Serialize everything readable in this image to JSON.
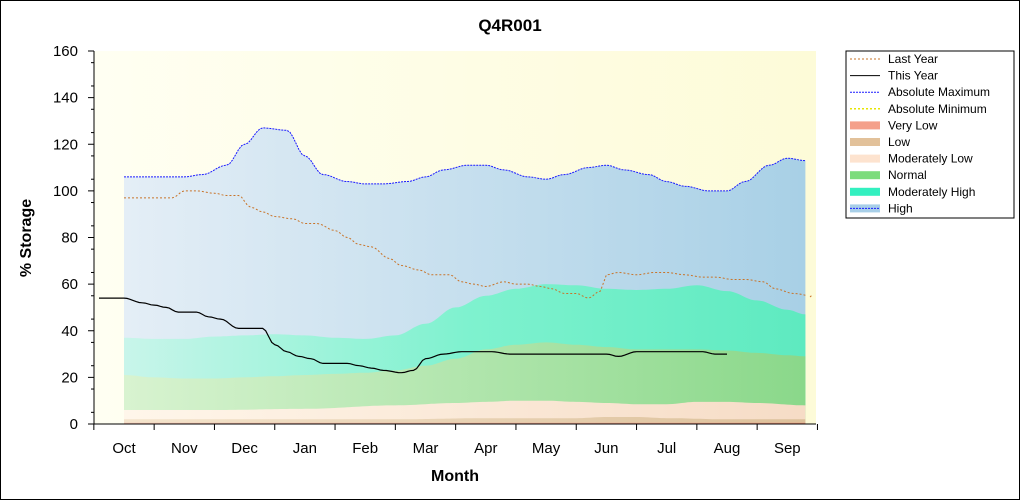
{
  "chart_data": {
    "type": "area",
    "title": "Q4R001",
    "xlabel": "Month",
    "ylabel": "% Storage",
    "ylim": [
      0,
      160
    ],
    "y_ticks": [
      0,
      20,
      40,
      60,
      80,
      100,
      120,
      140,
      160
    ],
    "x_ticks": [
      "Oct",
      "Nov",
      "Dec",
      "Jan",
      "Feb",
      "Mar",
      "Apr",
      "May",
      "Jun",
      "Jul",
      "Aug",
      "Sep"
    ],
    "legend_position": "right",
    "series": [
      {
        "name": "Last Year",
        "kind": "line",
        "style": "dotted",
        "color": "#c8742a",
        "x": [
          0,
          0.5,
          0.8,
          1.0,
          1.2,
          1.5,
          1.7,
          1.9,
          2.1,
          2.3,
          2.5,
          2.8,
          3.0,
          3.2,
          3.5,
          3.7,
          3.9,
          4.1,
          4.4,
          4.6,
          4.9,
          5.1,
          5.4,
          5.6,
          5.8,
          6.0,
          6.3,
          6.5,
          6.7,
          6.9,
          7.1,
          7.3,
          7.5,
          7.7,
          7.9,
          8.0,
          8.2,
          8.5,
          8.8,
          9.0,
          9.3,
          9.6,
          9.8,
          10.1,
          10.3,
          10.6,
          10.8,
          11.1,
          11.4
        ],
        "values": [
          97,
          97,
          97,
          100,
          100,
          99,
          98,
          98,
          93,
          91,
          89,
          88,
          86,
          86,
          83,
          80,
          77,
          76,
          71,
          68,
          66,
          64,
          64,
          61,
          60,
          59,
          61,
          60,
          60,
          59,
          58,
          56,
          56,
          54,
          57,
          64,
          65,
          64,
          65,
          65,
          64,
          63,
          63,
          62,
          62,
          61,
          58,
          56,
          55
        ]
      },
      {
        "name": "This Year",
        "kind": "line",
        "style": "solid",
        "color": "#000000",
        "x": [
          0,
          0.3,
          0.5,
          0.7,
          0.9,
          1.2,
          1.4,
          1.6,
          1.9,
          2.1,
          2.3,
          2.5,
          2.7,
          2.9,
          3.1,
          3.3,
          3.5,
          3.7,
          3.9,
          4.1,
          4.3,
          4.6,
          4.8,
          5.0,
          5.3,
          5.6,
          5.8,
          6.1,
          6.4,
          6.8,
          7.1,
          7.5,
          7.8,
          8.0,
          8.2,
          8.5,
          8.8,
          9.1,
          9.3,
          9.6,
          9.8,
          10.0
        ],
        "values": [
          54,
          52,
          51,
          50,
          48,
          48,
          46,
          45,
          41,
          41,
          41,
          34,
          31,
          29,
          28,
          26,
          26,
          26,
          25,
          24,
          23,
          22,
          23,
          28,
          30,
          31,
          31,
          31,
          30,
          30,
          30,
          30,
          30,
          30,
          29,
          31,
          31,
          31,
          31,
          31,
          30,
          30
        ]
      },
      {
        "name": "Absolute Maximum",
        "kind": "line",
        "style": "dotted",
        "color": "#1a1aff",
        "x": [
          0,
          0.7,
          1.0,
          1.3,
          1.7,
          2.0,
          2.3,
          2.7,
          3.0,
          3.3,
          3.7,
          4.0,
          4.3,
          4.7,
          5.0,
          5.3,
          5.7,
          6.0,
          6.3,
          6.7,
          7.0,
          7.3,
          7.7,
          8.0,
          8.3,
          8.7,
          9.0,
          9.3,
          9.7,
          10.0,
          10.3,
          10.7,
          11.0,
          11.3
        ],
        "values": [
          106,
          106,
          106,
          107,
          111,
          120,
          127,
          126,
          115,
          107,
          104,
          103,
          103,
          104,
          106,
          109,
          111,
          111,
          109,
          106,
          105,
          107,
          110,
          111,
          109,
          107,
          104,
          102,
          100,
          100,
          104,
          111,
          114,
          113
        ]
      },
      {
        "name": "Absolute Minimum",
        "kind": "line",
        "style": "dotted",
        "color": "#e6e600",
        "x": [
          0,
          11.3
        ],
        "values": [
          0,
          0
        ]
      },
      {
        "name": "Very Low",
        "kind": "band",
        "color": "#f4a08a",
        "x": [
          0,
          11.3
        ],
        "values": [
          0.5,
          0.5
        ]
      },
      {
        "name": "Low",
        "kind": "band",
        "color": "#e2c19a",
        "x": [
          0,
          1.5,
          3.0,
          4.5,
          6.0,
          7.0,
          7.5,
          8.0,
          8.5,
          9.0,
          10.0,
          11.3
        ],
        "values": [
          2,
          2,
          2,
          2,
          2.5,
          2.5,
          2.5,
          3,
          3,
          2.5,
          2,
          2
        ]
      },
      {
        "name": "Moderately Low",
        "kind": "band",
        "color": "#fde3cf",
        "x": [
          0,
          1.5,
          3.0,
          4.5,
          5.5,
          6.0,
          6.5,
          7.0,
          7.5,
          8.0,
          8.5,
          9.0,
          9.5,
          10.0,
          10.5,
          11.3
        ],
        "values": [
          6,
          6,
          6.5,
          8,
          9,
          9.5,
          10,
          10,
          9.5,
          9,
          8.5,
          8.5,
          9.5,
          9.5,
          9,
          8
        ]
      },
      {
        "name": "Normal",
        "kind": "band",
        "color": "#7ddc7d",
        "x": [
          0,
          0.5,
          1.0,
          1.5,
          2.0,
          2.5,
          3.0,
          3.5,
          4.0,
          4.5,
          5.0,
          5.5,
          6.0,
          6.5,
          7.0,
          7.5,
          8.0,
          8.5,
          9.0,
          9.5,
          10.0,
          10.5,
          11.0,
          11.3
        ],
        "values": [
          21,
          20,
          19.5,
          19.5,
          20,
          20.5,
          21,
          21.5,
          22,
          23,
          25,
          28,
          32,
          34,
          35,
          34,
          33,
          32,
          32,
          32,
          31.5,
          30.5,
          29.5,
          29
        ]
      },
      {
        "name": "Moderately High",
        "kind": "band",
        "color": "#33f0c0",
        "x": [
          0,
          0.5,
          1.0,
          1.5,
          2.0,
          2.5,
          3.0,
          3.5,
          4.0,
          4.5,
          5.0,
          5.5,
          6.0,
          6.5,
          7.0,
          7.5,
          8.0,
          8.5,
          9.0,
          9.5,
          10.0,
          10.5,
          11.0,
          11.3
        ],
        "values": [
          37,
          36.5,
          36.5,
          37.5,
          38,
          38.5,
          38,
          37,
          36.5,
          38,
          43,
          50,
          55,
          58,
          60,
          59.5,
          58,
          57.5,
          58,
          59.5,
          57,
          53,
          49,
          47
        ]
      },
      {
        "name": "High",
        "kind": "band",
        "color": "#a8cfe8",
        "upper": "Absolute Maximum"
      }
    ]
  }
}
